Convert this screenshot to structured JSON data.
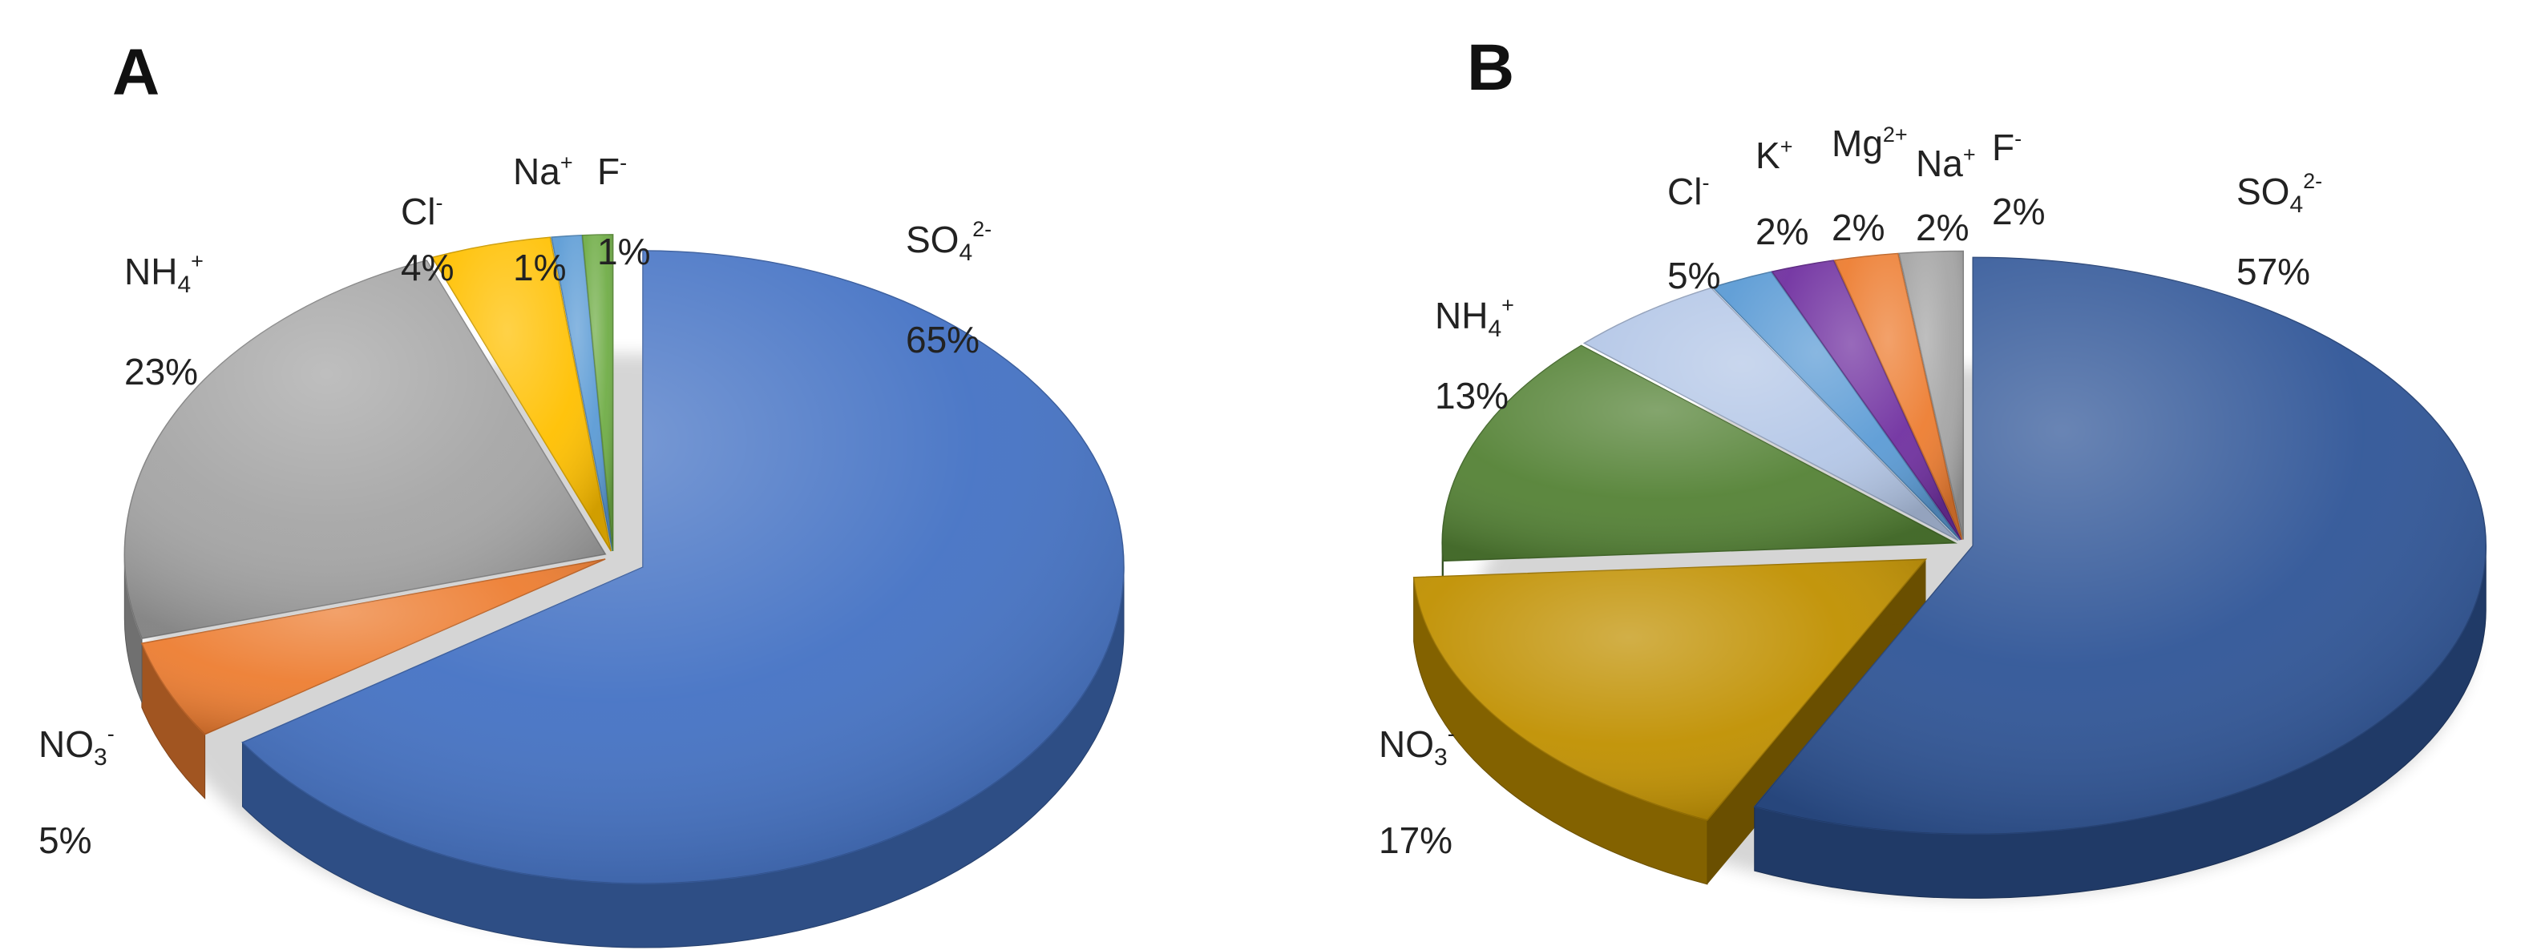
{
  "panels": [
    {
      "letter": "A"
    },
    {
      "letter": "B"
    }
  ],
  "chart_data": [
    {
      "type": "pie",
      "panel": "A",
      "title": "",
      "slices": [
        {
          "name": "SO4 2-",
          "label_base": "SO",
          "label_sub": "4",
          "label_sup": "2-",
          "value": 65,
          "pct_label": "65%",
          "color": "#4472c4"
        },
        {
          "name": "NO3 -",
          "label_base": "NO",
          "label_sub": "3",
          "label_sup": "-",
          "value": 5,
          "pct_label": "5%",
          "color": "#ed7d31"
        },
        {
          "name": "NH4 +",
          "label_base": "NH",
          "label_sub": "4",
          "label_sup": "+",
          "value": 23,
          "pct_label": "23%",
          "color": "#a5a5a5"
        },
        {
          "name": "Cl -",
          "label_base": "Cl",
          "label_sub": "",
          "label_sup": "-",
          "value": 4,
          "pct_label": "4%",
          "color": "#ffc000"
        },
        {
          "name": "Na +",
          "label_base": "Na",
          "label_sub": "",
          "label_sup": "+",
          "value": 1,
          "pct_label": "1%",
          "color": "#5b9bd5"
        },
        {
          "name": "F -",
          "label_base": "F",
          "label_sub": "",
          "label_sup": "-",
          "value": 1,
          "pct_label": "1%",
          "color": "#70ad47"
        }
      ]
    },
    {
      "type": "pie",
      "panel": "B",
      "title": "",
      "slices": [
        {
          "name": "SO4 2-",
          "label_base": "SO",
          "label_sub": "4",
          "label_sup": "2-",
          "value": 57,
          "pct_label": "57%",
          "color": "#2f5597"
        },
        {
          "name": "NO3 -",
          "label_base": "NO",
          "label_sub": "3",
          "label_sup": "-",
          "value": 17,
          "pct_label": "17%",
          "color": "#c09000"
        },
        {
          "name": "NH4 +",
          "label_base": "NH",
          "label_sub": "4",
          "label_sup": "+",
          "value": 13,
          "pct_label": "13%",
          "color": "#548235"
        },
        {
          "name": "Cl -",
          "label_base": "Cl",
          "label_sub": "",
          "label_sup": "-",
          "value": 5,
          "pct_label": "5%",
          "color": "#b4c7e7"
        },
        {
          "name": "K +",
          "label_base": "K",
          "label_sub": "",
          "label_sup": "+",
          "value": 2,
          "pct_label": "2%",
          "color": "#5b9bd5"
        },
        {
          "name": "Mg 2+",
          "label_base": "Mg",
          "label_sub": "",
          "label_sup": "2+",
          "value": 2,
          "pct_label": "2%",
          "color": "#7030a0"
        },
        {
          "name": "Na +",
          "label_base": "Na",
          "label_sub": "",
          "label_sup": "+",
          "value": 2,
          "pct_label": "2%",
          "color": "#ed7d31"
        },
        {
          "name": "F -",
          "label_base": "F",
          "label_sub": "",
          "label_sup": "-",
          "value": 2,
          "pct_label": "2%",
          "color": "#a5a5a5"
        }
      ]
    }
  ]
}
